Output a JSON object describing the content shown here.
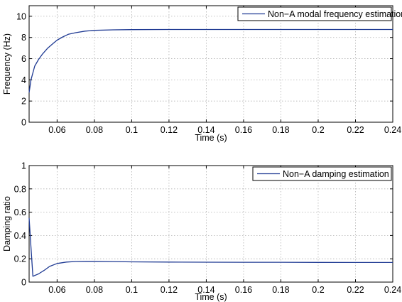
{
  "chart_data": [
    {
      "type": "line",
      "title": "",
      "xlabel": "Time (s)",
      "ylabel": "Frequency (Hz)",
      "xlim": [
        0.045,
        0.24
      ],
      "ylim": [
        0,
        11
      ],
      "xticks": [
        0.06,
        0.08,
        0.1,
        0.12,
        0.14,
        0.16,
        0.18,
        0.2,
        0.22,
        0.24
      ],
      "xtick_labels": [
        "0.06",
        "0.08",
        "0.1",
        "0.12",
        "0.14",
        "0.16",
        "0.18",
        "0.2",
        "0.22",
        "0.24"
      ],
      "yticks": [
        0,
        2,
        4,
        6,
        8,
        10
      ],
      "ytick_labels": [
        "0",
        "2",
        "4",
        "6",
        "8",
        "10"
      ],
      "grid": true,
      "legend_position": "top-right",
      "color": "#1f3a93",
      "series": [
        {
          "name": "Non−A modal frequency estimation",
          "x": [
            0.045,
            0.046,
            0.048,
            0.05,
            0.052,
            0.055,
            0.058,
            0.06,
            0.063,
            0.066,
            0.07,
            0.075,
            0.08,
            0.09,
            0.1,
            0.12,
            0.14,
            0.16,
            0.18,
            0.2,
            0.22,
            0.24
          ],
          "y": [
            2.8,
            4.0,
            5.3,
            5.9,
            6.4,
            7.0,
            7.45,
            7.75,
            8.05,
            8.3,
            8.45,
            8.6,
            8.67,
            8.72,
            8.74,
            8.75,
            8.75,
            8.75,
            8.75,
            8.75,
            8.75,
            8.75
          ]
        }
      ]
    },
    {
      "type": "line",
      "title": "",
      "xlabel": "Time (s)",
      "ylabel": "Damping ratio",
      "xlim": [
        0.045,
        0.24
      ],
      "ylim": [
        0,
        1
      ],
      "xticks": [
        0.06,
        0.08,
        0.1,
        0.12,
        0.14,
        0.16,
        0.18,
        0.2,
        0.22,
        0.24
      ],
      "xtick_labels": [
        "0.06",
        "0.08",
        "0.1",
        "0.12",
        "0.14",
        "0.16",
        "0.18",
        "0.2",
        "0.22",
        "0.24"
      ],
      "yticks": [
        0,
        0.2,
        0.4,
        0.6,
        0.8,
        1
      ],
      "ytick_labels": [
        "0",
        "0.2",
        "0.4",
        "0.6",
        "0.8",
        "1"
      ],
      "grid": true,
      "legend_position": "top-right",
      "color": "#1f3a93",
      "series": [
        {
          "name": "Non−A damping estimation",
          "x": [
            0.045,
            0.046,
            0.047,
            0.05,
            0.053,
            0.056,
            0.06,
            0.065,
            0.07,
            0.075,
            0.08,
            0.09,
            0.1,
            0.12,
            0.14,
            0.16,
            0.18,
            0.2,
            0.22,
            0.24
          ],
          "y": [
            0.55,
            0.3,
            0.05,
            0.07,
            0.1,
            0.135,
            0.16,
            0.172,
            0.177,
            0.178,
            0.178,
            0.176,
            0.174,
            0.172,
            0.171,
            0.17,
            0.17,
            0.169,
            0.168,
            0.168
          ]
        }
      ]
    }
  ]
}
